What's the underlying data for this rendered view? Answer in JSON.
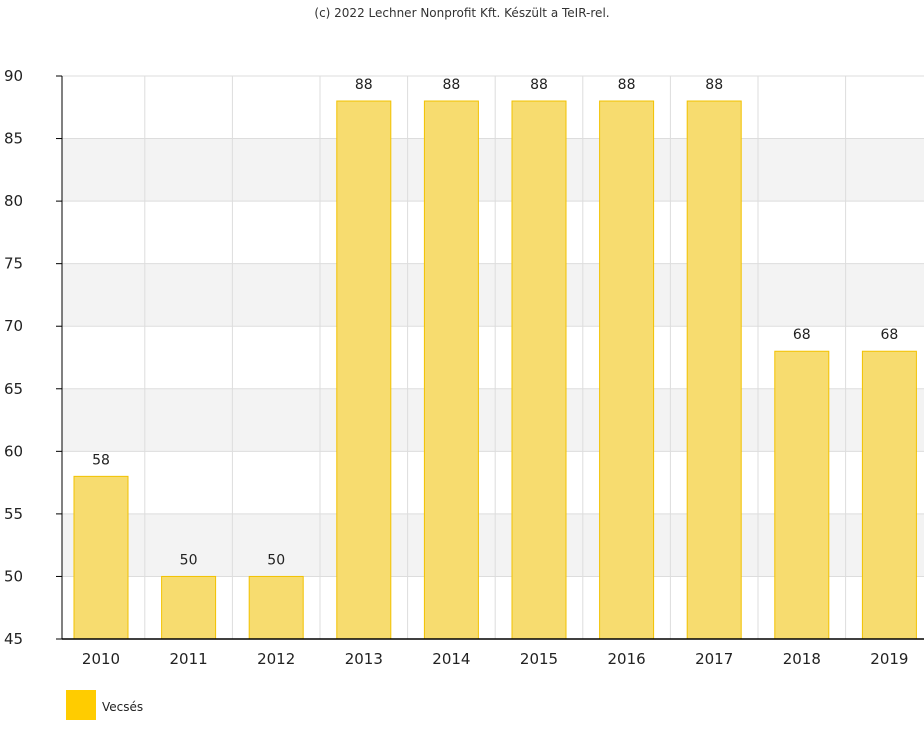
{
  "credit": "(c) 2022 Lechner Nonprofit Kft. Készült a TeIR-rel.",
  "chart_data": {
    "type": "bar",
    "categories": [
      "2010",
      "2011",
      "2012",
      "2013",
      "2014",
      "2015",
      "2016",
      "2017",
      "2018",
      "2019"
    ],
    "series": [
      {
        "name": "Vecsés",
        "values": [
          58,
          50,
          50,
          88,
          88,
          88,
          88,
          88,
          68,
          68
        ]
      }
    ],
    "ylim": [
      45,
      90
    ],
    "yticks": [
      45,
      50,
      55,
      60,
      65,
      70,
      75,
      80,
      85,
      90
    ],
    "grid": true,
    "legend_position": "bottom-left",
    "data_labels": true
  },
  "colors": {
    "bar_fill": "#f7dc6f",
    "bar_stroke": "#f2c200",
    "legend_swatch": "#ffcc00",
    "band_alt": "#f3f3f3",
    "gridline": "#dddddd",
    "axis": "#000000"
  }
}
